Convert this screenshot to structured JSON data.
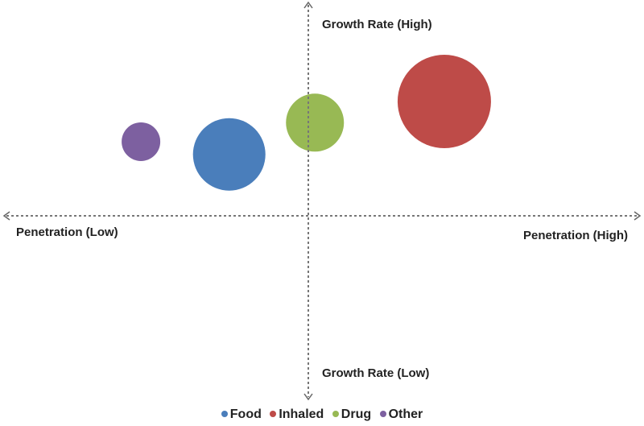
{
  "chart_data": {
    "type": "scatter",
    "subtype": "bubble",
    "title": "",
    "xlabel_low": "Penetration (Low)",
    "xlabel_high": "Penetration (High)",
    "ylabel_high": "Growth Rate (High)",
    "ylabel_low": "Growth Rate (Low)",
    "xlim": [
      -1,
      1
    ],
    "ylim": [
      -1,
      1
    ],
    "grid": false,
    "legend_position": "bottom",
    "series": [
      {
        "name": "Food",
        "color": "#4a7ebb",
        "x": -0.26,
        "y": 0.29,
        "size": 45
      },
      {
        "name": "Inhaled",
        "color": "#be4b48",
        "x": 0.41,
        "y": 0.54,
        "size": 58
      },
      {
        "name": "Drug",
        "color": "#98b954",
        "x": 0.02,
        "y": 0.44,
        "size": 36
      },
      {
        "name": "Other",
        "color": "#7d60a0",
        "x": -0.55,
        "y": 0.35,
        "size": 24
      }
    ]
  }
}
